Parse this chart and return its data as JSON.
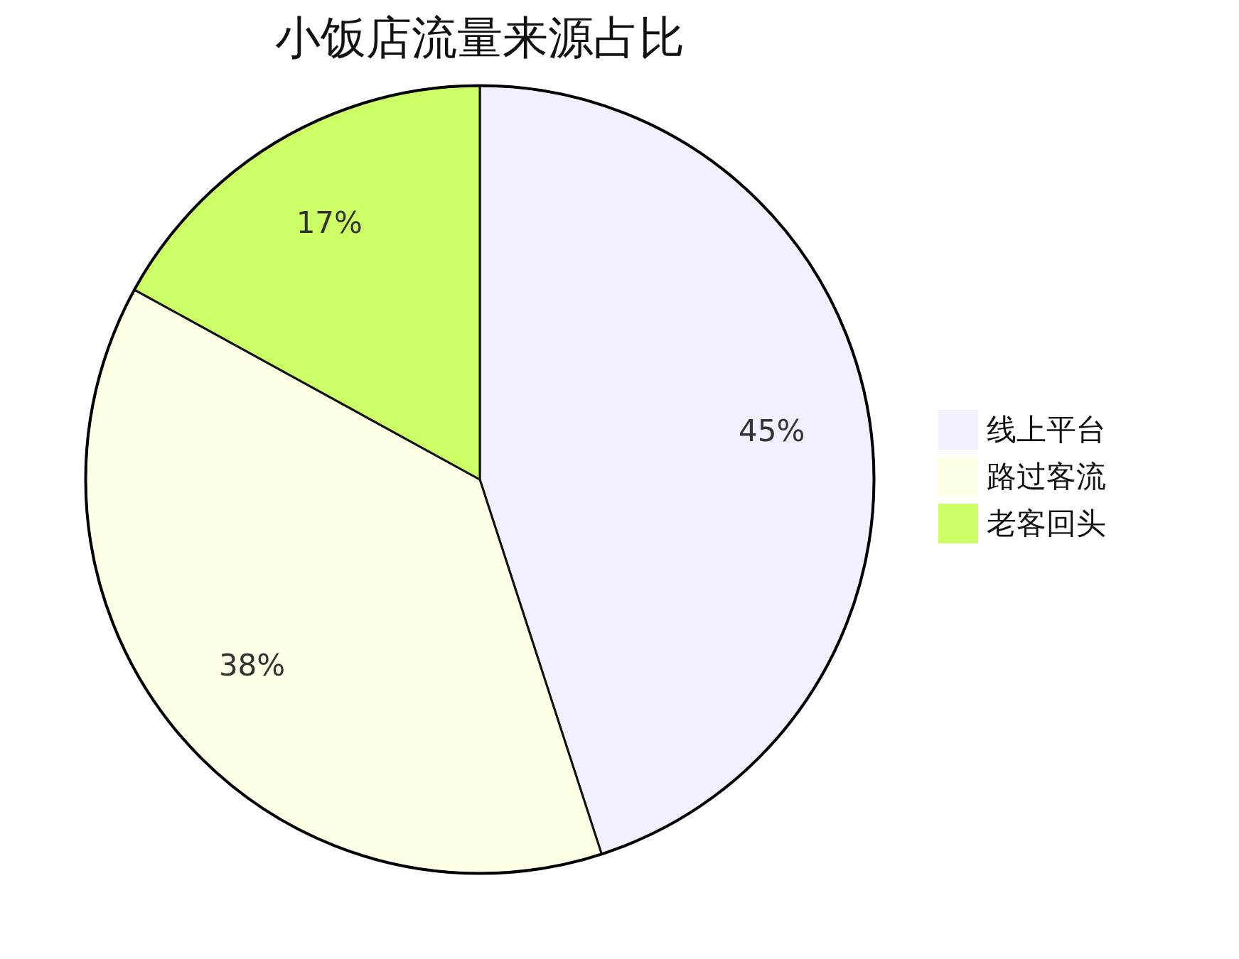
{
  "chart_data": {
    "type": "pie",
    "title": "小饭店流量来源占比",
    "categories": [
      "线上平台",
      "路过客流",
      "老客回头"
    ],
    "values": [
      45,
      38,
      17
    ],
    "colors": [
      "#f0f0ff",
      "#ffffe5",
      "#ccff66"
    ],
    "value_labels": [
      "45%",
      "38%",
      "17%"
    ],
    "legend": "right"
  }
}
